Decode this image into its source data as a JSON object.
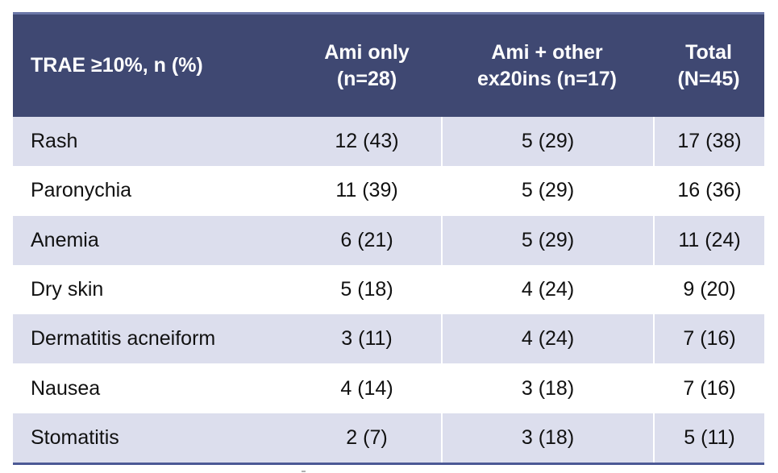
{
  "chart_data": {
    "type": "table",
    "title": "TRAE ≥10%, n (%)",
    "columns": [
      "TRAE ≥10%, n (%)",
      "Ami only (n=28)",
      "Ami + other ex20ins (n=17)",
      "Total (N=45)"
    ],
    "rows": [
      {
        "label": "Rash",
        "values": [
          "12 (43)",
          "5 (29)",
          "17 (38)"
        ]
      },
      {
        "label": "Paronychia",
        "values": [
          "11 (39)",
          "5 (29)",
          "16 (36)"
        ]
      },
      {
        "label": "Anemia",
        "values": [
          "6 (21)",
          "5 (29)",
          "11 (24)"
        ]
      },
      {
        "label": "Dry skin",
        "values": [
          "5 (18)",
          "4 (24)",
          "9 (20)"
        ]
      },
      {
        "label": "Dermatitis acneiform",
        "values": [
          "3 (11)",
          "4 (24)",
          "7 (16)"
        ]
      },
      {
        "label": "Nausea",
        "values": [
          "4 (14)",
          "3 (18)",
          "7 (16)"
        ]
      },
      {
        "label": "Stomatitis",
        "values": [
          "2 (7)",
          "3 (18)",
          "5 (11)"
        ]
      }
    ]
  },
  "table": {
    "header": {
      "col1": {
        "line1": "TRAE ≥10%, n (%)"
      },
      "col2": {
        "line1": "Ami only",
        "line2": "(n=28)"
      },
      "col3": {
        "line1": "Ami + other",
        "line2": "ex20ins (n=17)"
      },
      "col4": {
        "line1": "Total",
        "line2": "(N=45)"
      }
    },
    "rows": [
      {
        "label": "Rash",
        "values": [
          "12 (43)",
          "5 (29)",
          "17 (38)"
        ]
      },
      {
        "label": "Paronychia",
        "values": [
          "11 (39)",
          "5 (29)",
          "16 (36)"
        ]
      },
      {
        "label": "Anemia",
        "values": [
          "6 (21)",
          "5 (29)",
          "11 (24)"
        ]
      },
      {
        "label": "Dry skin",
        "values": [
          "5 (18)",
          "4 (24)",
          "9 (20)"
        ]
      },
      {
        "label": "Dermatitis acneiform",
        "values": [
          "3 (11)",
          "4 (24)",
          "7 (16)"
        ]
      },
      {
        "label": "Nausea",
        "values": [
          "4 (14)",
          "3 (18)",
          "7 (16)"
        ]
      },
      {
        "label": "Stomatitis",
        "values": [
          "2 (7)",
          "3 (18)",
          "5 (11)"
        ]
      }
    ]
  },
  "colors": {
    "header_bg": "#3f4872",
    "header_text": "#ffffff",
    "top_border": "#6b77a8",
    "bottom_border": "#4c5995",
    "row_alt_bg": "#dcdeed",
    "row_bg": "#ffffff",
    "body_text": "#111111"
  }
}
